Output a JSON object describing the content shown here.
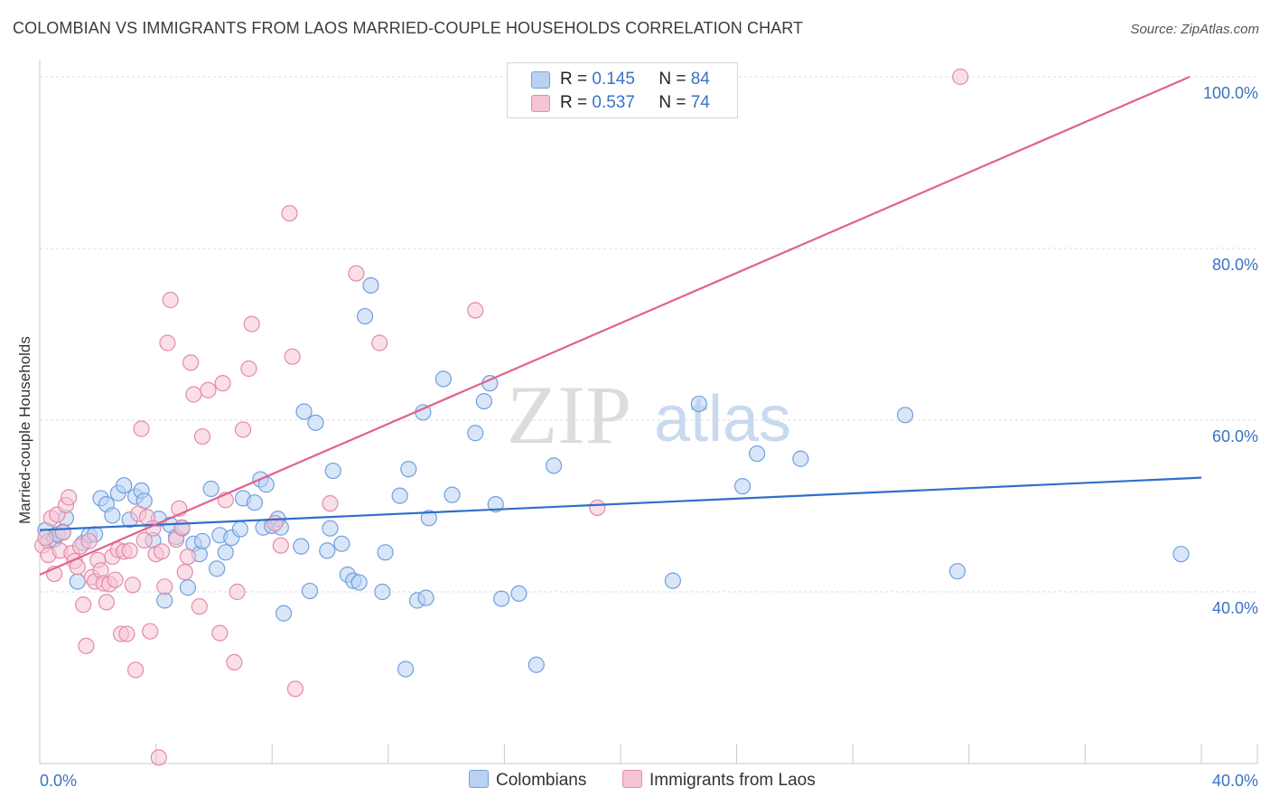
{
  "title": "COLOMBIAN VS IMMIGRANTS FROM LAOS MARRIED-COUPLE HOUSEHOLDS CORRELATION CHART",
  "source": "Source: ZipAtlas.com",
  "watermark": {
    "zip": "ZIP",
    "atlas": "atlas"
  },
  "legend": {
    "r_label": "R =",
    "n_label": "N =",
    "rows": [
      {
        "series": "Colombians",
        "r": "0.145",
        "n": "84",
        "color": "#6fa0e0",
        "fill": "#b9d2f2"
      },
      {
        "series": "Immigrants from Laos",
        "r": "0.537",
        "n": "74",
        "color": "#e58aa8",
        "fill": "#f6c4d4"
      }
    ]
  },
  "chart_data": {
    "type": "scatter",
    "title": "COLOMBIAN VS IMMIGRANTS FROM LAOS MARRIED-COUPLE HOUSEHOLDS CORRELATION CHART",
    "xlabel": "",
    "ylabel": "Married-couple Households",
    "xlim": [
      0,
      40
    ],
    "ylim": [
      20,
      102
    ],
    "x_tick_labels": [
      "0.0%",
      "40.0%"
    ],
    "y_ticks": [
      40,
      60,
      80,
      100
    ],
    "y_tick_labels": [
      "40.0%",
      "60.0%",
      "80.0%",
      "100.0%"
    ],
    "grid": true,
    "series": [
      {
        "name": "Colombians",
        "color": "#6fa0e0",
        "fill": "#b9d2f2",
        "trend_color": "#2f6fcb",
        "trend": [
          [
            0,
            47.2
          ],
          [
            40,
            53.3
          ]
        ],
        "points": [
          [
            0.2,
            47.2
          ],
          [
            0.3,
            45.9
          ],
          [
            0.5,
            46.1
          ],
          [
            0.6,
            46.7
          ],
          [
            0.8,
            47.0
          ],
          [
            0.9,
            48.6
          ],
          [
            1.3,
            41.2
          ],
          [
            1.5,
            45.7
          ],
          [
            1.7,
            46.6
          ],
          [
            1.9,
            46.7
          ],
          [
            2.1,
            50.9
          ],
          [
            2.3,
            50.2
          ],
          [
            2.5,
            48.9
          ],
          [
            2.7,
            51.5
          ],
          [
            2.9,
            52.4
          ],
          [
            3.1,
            48.4
          ],
          [
            3.3,
            51.1
          ],
          [
            3.5,
            51.8
          ],
          [
            3.6,
            50.6
          ],
          [
            3.9,
            46.0
          ],
          [
            4.1,
            48.5
          ],
          [
            4.3,
            39.0
          ],
          [
            4.5,
            47.8
          ],
          [
            4.7,
            46.4
          ],
          [
            4.9,
            47.4
          ],
          [
            5.1,
            40.5
          ],
          [
            5.3,
            45.6
          ],
          [
            5.5,
            44.4
          ],
          [
            5.6,
            45.9
          ],
          [
            5.9,
            52.0
          ],
          [
            6.1,
            42.7
          ],
          [
            6.2,
            46.6
          ],
          [
            6.4,
            44.6
          ],
          [
            6.6,
            46.3
          ],
          [
            6.9,
            47.3
          ],
          [
            7.0,
            50.9
          ],
          [
            7.4,
            50.4
          ],
          [
            7.6,
            53.1
          ],
          [
            7.7,
            47.5
          ],
          [
            7.8,
            52.5
          ],
          [
            8.0,
            47.7
          ],
          [
            8.2,
            48.5
          ],
          [
            8.3,
            47.5
          ],
          [
            8.4,
            37.5
          ],
          [
            9.0,
            45.3
          ],
          [
            9.1,
            61.0
          ],
          [
            9.3,
            40.1
          ],
          [
            9.5,
            59.7
          ],
          [
            9.9,
            44.8
          ],
          [
            10.0,
            47.4
          ],
          [
            10.1,
            54.1
          ],
          [
            10.4,
            45.6
          ],
          [
            10.6,
            42.0
          ],
          [
            10.8,
            41.3
          ],
          [
            11.0,
            41.1
          ],
          [
            11.2,
            72.1
          ],
          [
            11.4,
            75.7
          ],
          [
            11.8,
            40.0
          ],
          [
            11.9,
            44.6
          ],
          [
            12.4,
            51.2
          ],
          [
            12.6,
            31.0
          ],
          [
            12.7,
            54.3
          ],
          [
            13.0,
            39.0
          ],
          [
            13.2,
            60.9
          ],
          [
            13.3,
            39.3
          ],
          [
            13.4,
            48.6
          ],
          [
            13.9,
            64.8
          ],
          [
            14.2,
            51.3
          ],
          [
            15.0,
            58.5
          ],
          [
            15.3,
            62.2
          ],
          [
            15.5,
            64.3
          ],
          [
            15.7,
            50.2
          ],
          [
            15.9,
            39.2
          ],
          [
            16.5,
            39.8
          ],
          [
            17.1,
            31.5
          ],
          [
            17.7,
            54.7
          ],
          [
            21.8,
            41.3
          ],
          [
            22.7,
            61.9
          ],
          [
            24.2,
            52.3
          ],
          [
            24.7,
            56.1
          ],
          [
            26.2,
            55.5
          ],
          [
            29.8,
            60.6
          ],
          [
            31.6,
            42.4
          ],
          [
            39.3,
            44.4
          ]
        ]
      },
      {
        "name": "Immigrants from Laos",
        "color": "#e58aa8",
        "fill": "#f6c4d4",
        "trend_color": "#e0628c",
        "trend": [
          [
            0,
            42.0
          ],
          [
            39.6,
            100.0
          ]
        ],
        "points": [
          [
            0.1,
            45.4
          ],
          [
            0.2,
            46.3
          ],
          [
            0.3,
            44.3
          ],
          [
            0.4,
            48.6
          ],
          [
            0.5,
            42.1
          ],
          [
            0.6,
            49.0
          ],
          [
            0.7,
            44.8
          ],
          [
            0.8,
            46.9
          ],
          [
            0.9,
            50.1
          ],
          [
            1.0,
            51.0
          ],
          [
            1.1,
            44.5
          ],
          [
            1.2,
            43.6
          ],
          [
            1.3,
            42.9
          ],
          [
            1.4,
            45.3
          ],
          [
            1.5,
            38.5
          ],
          [
            1.6,
            33.7
          ],
          [
            1.7,
            45.9
          ],
          [
            1.8,
            41.7
          ],
          [
            1.9,
            41.2
          ],
          [
            2.0,
            43.7
          ],
          [
            2.1,
            42.5
          ],
          [
            2.2,
            41.0
          ],
          [
            2.3,
            38.8
          ],
          [
            2.4,
            40.9
          ],
          [
            2.5,
            44.1
          ],
          [
            2.6,
            41.4
          ],
          [
            2.7,
            44.9
          ],
          [
            2.8,
            35.1
          ],
          [
            2.9,
            44.7
          ],
          [
            3.0,
            35.1
          ],
          [
            3.1,
            44.8
          ],
          [
            3.2,
            40.8
          ],
          [
            3.3,
            30.9
          ],
          [
            3.4,
            49.1
          ],
          [
            3.5,
            59.0
          ],
          [
            3.6,
            46.0
          ],
          [
            3.7,
            48.7
          ],
          [
            3.8,
            35.4
          ],
          [
            3.9,
            47.4
          ],
          [
            4.0,
            44.4
          ],
          [
            4.1,
            20.7
          ],
          [
            4.2,
            44.7
          ],
          [
            4.3,
            40.6
          ],
          [
            4.4,
            69.0
          ],
          [
            4.5,
            74.0
          ],
          [
            4.7,
            46.1
          ],
          [
            4.8,
            49.7
          ],
          [
            4.9,
            47.5
          ],
          [
            5.0,
            42.3
          ],
          [
            5.1,
            44.1
          ],
          [
            5.2,
            66.7
          ],
          [
            5.3,
            63.0
          ],
          [
            5.5,
            38.3
          ],
          [
            5.6,
            58.1
          ],
          [
            5.8,
            63.5
          ],
          [
            6.2,
            35.2
          ],
          [
            6.3,
            64.3
          ],
          [
            6.4,
            50.7
          ],
          [
            6.7,
            31.8
          ],
          [
            6.8,
            40.0
          ],
          [
            7.0,
            58.9
          ],
          [
            7.2,
            66.0
          ],
          [
            7.3,
            71.2
          ],
          [
            8.1,
            48.0
          ],
          [
            8.3,
            45.4
          ],
          [
            8.6,
            84.1
          ],
          [
            8.7,
            67.4
          ],
          [
            8.8,
            28.7
          ],
          [
            10.0,
            50.3
          ],
          [
            10.9,
            77.1
          ],
          [
            11.7,
            69.0
          ],
          [
            15.0,
            72.8
          ],
          [
            19.2,
            49.8
          ],
          [
            31.7,
            100.0
          ]
        ]
      }
    ]
  }
}
